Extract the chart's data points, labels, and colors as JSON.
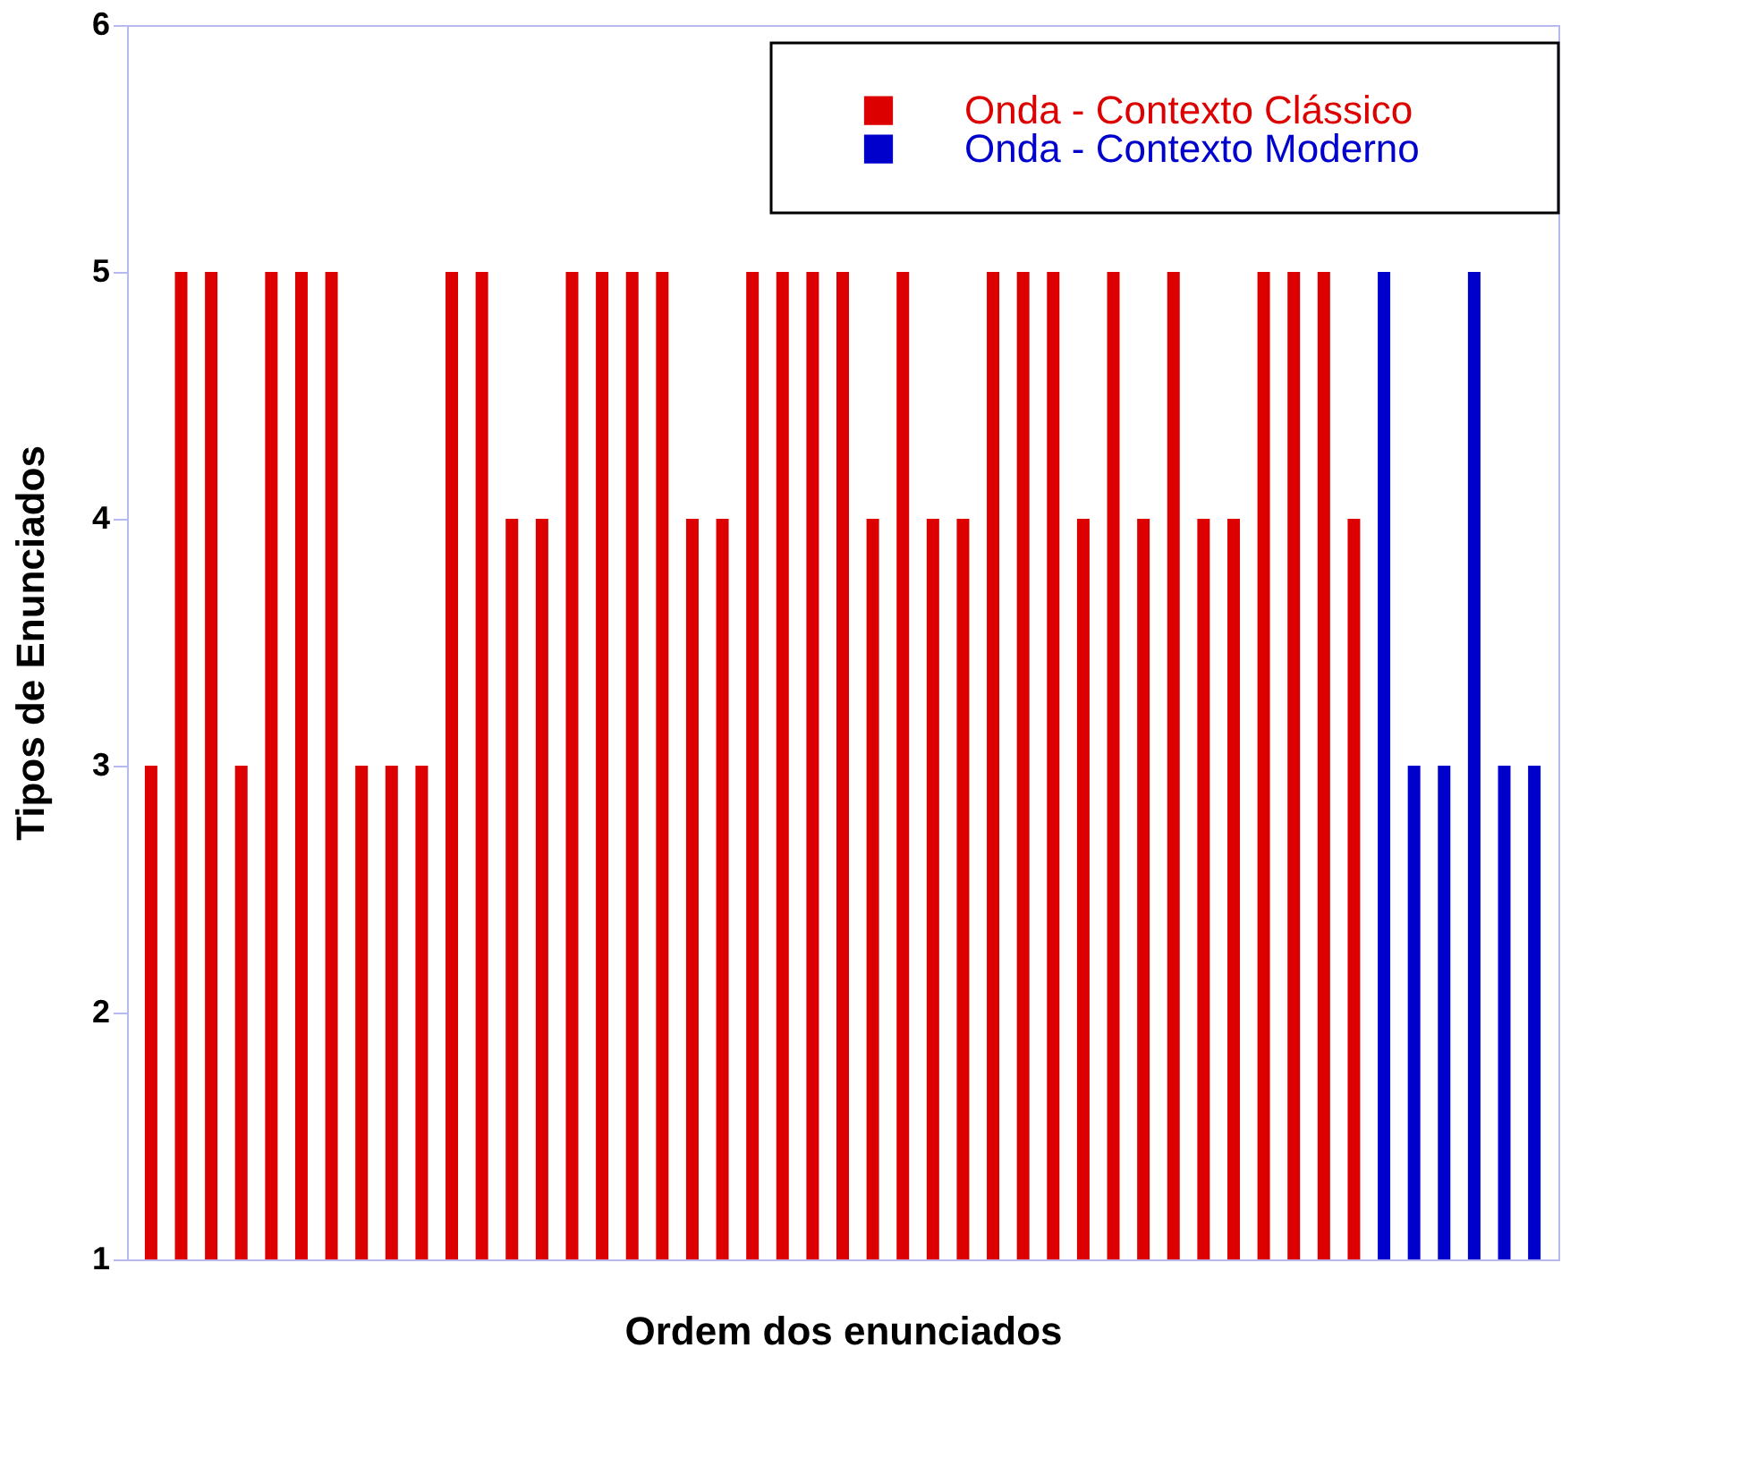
{
  "chart_data": {
    "type": "bar",
    "xlabel": "Ordem dos enunciados",
    "ylabel": "Tipos de Enunciados",
    "categories": [
      null,
      null,
      null,
      null,
      null,
      null,
      null,
      null,
      null,
      null,
      null,
      null,
      null,
      null,
      null,
      null,
      null,
      null,
      null,
      null,
      null,
      null,
      null,
      null,
      null,
      null,
      null,
      null,
      null,
      null,
      null,
      null,
      null,
      null,
      null,
      null,
      null,
      null,
      null,
      null,
      null,
      null,
      null,
      null,
      null,
      null,
      null
    ],
    "series": [
      {
        "name": "Onda - Contexto Clássico",
        "color": "#dd0000",
        "values": [
          3,
          5,
          5,
          3,
          5,
          5,
          5,
          3,
          3,
          3,
          5,
          5,
          4,
          4,
          5,
          5,
          5,
          5,
          4,
          4,
          5,
          5,
          5,
          5,
          4,
          5,
          4,
          4,
          5,
          5,
          5,
          4,
          5,
          4,
          5,
          4,
          4,
          5,
          5,
          5,
          4,
          null,
          null,
          null,
          null,
          null,
          null
        ]
      },
      {
        "name": "Onda - Contexto Moderno",
        "color": "#0000cc",
        "values": [
          null,
          null,
          null,
          null,
          null,
          null,
          null,
          null,
          null,
          null,
          null,
          null,
          null,
          null,
          null,
          null,
          null,
          null,
          null,
          null,
          null,
          null,
          null,
          null,
          null,
          null,
          null,
          null,
          null,
          null,
          null,
          null,
          null,
          null,
          null,
          null,
          null,
          null,
          null,
          null,
          null,
          5,
          3,
          3,
          5,
          3,
          3
        ]
      }
    ],
    "ylim": [
      1,
      6
    ],
    "yticks": [
      1,
      2,
      3,
      4,
      5,
      6
    ],
    "stacked": true,
    "grid": false,
    "legend": "top right",
    "tick_labels": "y"
  }
}
